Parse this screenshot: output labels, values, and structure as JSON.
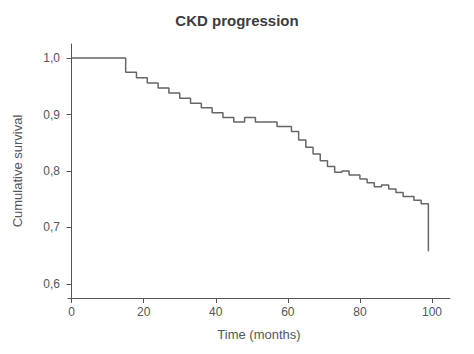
{
  "chart_data": {
    "type": "step",
    "title": "CKD progression",
    "xlabel": "Time (months)",
    "ylabel": "Cumulative survival",
    "color": "#666666",
    "grid": false,
    "xlim": [
      -1,
      105
    ],
    "xticks": [
      0,
      20,
      40,
      60,
      80,
      100
    ],
    "ylim": [
      0.575,
      1.025
    ],
    "yticks": [
      {
        "value": 0.6,
        "label": "0,6"
      },
      {
        "value": 0.7,
        "label": "0,7"
      },
      {
        "value": 0.8,
        "label": "0,8"
      },
      {
        "value": 0.9,
        "label": "0,9"
      },
      {
        "value": 1.0,
        "label": "1,0"
      }
    ],
    "x": [
      0,
      13,
      15,
      18,
      21,
      24,
      27,
      30,
      33,
      36,
      39,
      42,
      45,
      48,
      51,
      57,
      61,
      63,
      65,
      67,
      69,
      71,
      73,
      75,
      77,
      80,
      82,
      84,
      86,
      88,
      90,
      92,
      95,
      97,
      99
    ],
    "values": [
      1.0,
      1.0,
      0.975,
      0.965,
      0.956,
      0.947,
      0.938,
      0.929,
      0.92,
      0.912,
      0.903,
      0.895,
      0.887,
      0.895,
      0.887,
      0.879,
      0.87,
      0.855,
      0.842,
      0.83,
      0.818,
      0.808,
      0.798,
      0.8,
      0.793,
      0.786,
      0.779,
      0.772,
      0.775,
      0.768,
      0.762,
      0.755,
      0.748,
      0.742,
      0.658
    ]
  }
}
